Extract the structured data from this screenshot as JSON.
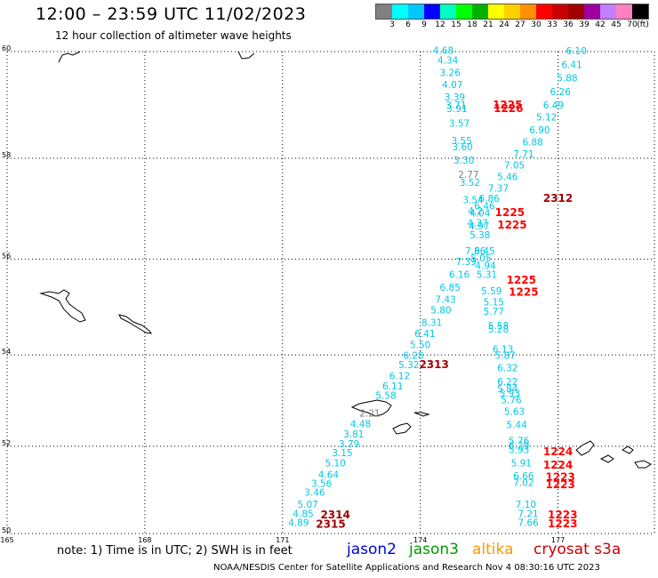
{
  "header": {
    "title": "12:00 – 23:59 UTC 11/02/2023",
    "subtitle": "12 hour collection of altimeter wave heights"
  },
  "legend": {
    "unit": "(ft)",
    "ticks": [
      "3",
      "6",
      "9",
      "12",
      "15",
      "18",
      "21",
      "24",
      "27",
      "30",
      "33",
      "36",
      "39",
      "42",
      "45",
      "70"
    ],
    "colors": [
      "#808080",
      "#00ffff",
      "#00c8ff",
      "#0000ff",
      "#00ffc0",
      "#00ff00",
      "#00b000",
      "#ffff00",
      "#ffd000",
      "#ff9000",
      "#ff0000",
      "#c80000",
      "#a00000",
      "#a000a0",
      "#c080ff",
      "#ff80c0",
      "#000000"
    ]
  },
  "map": {
    "lat_labels": [
      "60",
      "58",
      "56",
      "54",
      "52",
      "50"
    ],
    "lon_labels": [
      "165",
      "168",
      "171",
      "174",
      "177"
    ]
  },
  "track_colors": {
    "cyan": "#00c8e6",
    "gray": "#808080",
    "red": "#ff0000",
    "darkred": "#a00000"
  },
  "observations": [
    {
      "label": "4.68",
      "color": "cyan",
      "lon": 174.5,
      "lat": 59.96
    },
    {
      "label": "4.34",
      "color": "cyan",
      "lon": 174.6,
      "lat": 59.78
    },
    {
      "label": "3.26",
      "color": "cyan",
      "lon": 174.65,
      "lat": 59.55
    },
    {
      "label": "4.07",
      "color": "cyan",
      "lon": 174.7,
      "lat": 59.33
    },
    {
      "label": "3.39",
      "color": "cyan",
      "lon": 174.75,
      "lat": 59.1
    },
    {
      "label": "3.71",
      "color": "cyan",
      "lon": 174.78,
      "lat": 58.95
    },
    {
      "label": "3.91",
      "color": "cyan",
      "lon": 174.8,
      "lat": 58.88
    },
    {
      "label": "3.57",
      "color": "cyan",
      "lon": 174.85,
      "lat": 58.6
    },
    {
      "label": "3.55",
      "color": "cyan",
      "lon": 174.9,
      "lat": 58.27
    },
    {
      "label": "3.60",
      "color": "cyan",
      "lon": 174.92,
      "lat": 58.15
    },
    {
      "label": "3.30",
      "color": "cyan",
      "lon": 174.95,
      "lat": 57.9
    },
    {
      "label": "2.77",
      "color": "gray",
      "lon": 175.05,
      "lat": 57.62
    },
    {
      "label": "3.52",
      "color": "cyan",
      "lon": 175.08,
      "lat": 57.46
    },
    {
      "label": "3.54",
      "color": "cyan",
      "lon": 175.15,
      "lat": 57.12
    },
    {
      "label": "4.2",
      "color": "cyan",
      "lon": 175.2,
      "lat": 56.9
    },
    {
      "label": "4.04",
      "color": "cyan",
      "lon": 175.3,
      "lat": 56.86
    },
    {
      "label": "4.37",
      "color": "cyan",
      "lon": 175.25,
      "lat": 56.66
    },
    {
      "label": "4.97",
      "color": "cyan",
      "lon": 175.28,
      "lat": 56.6
    },
    {
      "label": "5.38",
      "color": "cyan",
      "lon": 175.3,
      "lat": 56.42
    },
    {
      "label": "7.86",
      "color": "cyan",
      "lon": 175.2,
      "lat": 56.1
    },
    {
      "label": "6.45",
      "color": "cyan",
      "lon": 175.4,
      "lat": 56.1
    },
    {
      "label": "5.05",
      "color": "cyan",
      "lon": 175.32,
      "lat": 55.95
    },
    {
      "label": "7.39",
      "color": "cyan",
      "lon": 175.0,
      "lat": 55.88
    },
    {
      "label": "4.94",
      "color": "cyan",
      "lon": 175.42,
      "lat": 55.8
    },
    {
      "label": "6.16",
      "color": "cyan",
      "lon": 174.85,
      "lat": 55.62
    },
    {
      "label": "5.31",
      "color": "cyan",
      "lon": 175.45,
      "lat": 55.62
    },
    {
      "label": "6.85",
      "color": "cyan",
      "lon": 174.65,
      "lat": 55.35
    },
    {
      "label": "5.59",
      "color": "cyan",
      "lon": 175.55,
      "lat": 55.28
    },
    {
      "label": "7.43",
      "color": "cyan",
      "lon": 174.55,
      "lat": 55.1
    },
    {
      "label": "5.15",
      "color": "cyan",
      "lon": 175.6,
      "lat": 55.05
    },
    {
      "label": "5.80",
      "color": "cyan",
      "lon": 174.45,
      "lat": 54.88
    },
    {
      "label": "5.77",
      "color": "cyan",
      "lon": 175.6,
      "lat": 54.85
    },
    {
      "label": "8.31",
      "color": "cyan",
      "lon": 174.25,
      "lat": 54.62
    },
    {
      "label": "5.58",
      "color": "cyan",
      "lon": 175.7,
      "lat": 54.55
    },
    {
      "label": "5.28",
      "color": "cyan",
      "lon": 175.7,
      "lat": 54.48
    },
    {
      "label": "6.41",
      "color": "cyan",
      "lon": 174.1,
      "lat": 54.38
    },
    {
      "label": "5.50",
      "color": "cyan",
      "lon": 174.0,
      "lat": 54.15
    },
    {
      "label": "6.13",
      "color": "cyan",
      "lon": 175.8,
      "lat": 54.05
    },
    {
      "label": "6.28",
      "color": "cyan",
      "lon": 173.85,
      "lat": 53.92
    },
    {
      "label": "5.87",
      "color": "cyan",
      "lon": 175.85,
      "lat": 53.92
    },
    {
      "label": "5.32",
      "color": "cyan",
      "lon": 173.75,
      "lat": 53.72
    },
    {
      "label": "6.32",
      "color": "cyan",
      "lon": 175.9,
      "lat": 53.65
    },
    {
      "label": "6.12",
      "color": "cyan",
      "lon": 173.55,
      "lat": 53.48
    },
    {
      "label": "6.22",
      "color": "cyan",
      "lon": 175.9,
      "lat": 53.35
    },
    {
      "label": "6.11",
      "color": "cyan",
      "lon": 173.4,
      "lat": 53.25
    },
    {
      "label": "5.84",
      "color": "cyan",
      "lon": 175.9,
      "lat": 53.2
    },
    {
      "label": "5.58",
      "color": "cyan",
      "lon": 173.25,
      "lat": 53.05
    },
    {
      "label": "5.93",
      "color": "cyan",
      "lon": 175.95,
      "lat": 53.1
    },
    {
      "label": "5.76",
      "color": "cyan",
      "lon": 175.98,
      "lat": 52.95
    },
    {
      "label": "5.63",
      "color": "cyan",
      "lon": 176.05,
      "lat": 52.7
    },
    {
      "label": "2.21",
      "color": "gray",
      "lon": 172.9,
      "lat": 52.66
    },
    {
      "label": "4.48",
      "color": "cyan",
      "lon": 172.7,
      "lat": 52.42
    },
    {
      "label": "5.44",
      "color": "cyan",
      "lon": 176.1,
      "lat": 52.4
    },
    {
      "label": "3.81",
      "color": "cyan",
      "lon": 172.55,
      "lat": 52.2
    },
    {
      "label": "5.76",
      "color": "cyan",
      "lon": 176.15,
      "lat": 52.05
    },
    {
      "label": "3.79",
      "color": "cyan",
      "lon": 172.45,
      "lat": 51.98
    },
    {
      "label": "6.29",
      "color": "cyan",
      "lon": 176.15,
      "lat": 51.95
    },
    {
      "label": "5.93",
      "color": "cyan",
      "lon": 176.15,
      "lat": 51.85
    },
    {
      "label": "3.15",
      "color": "cyan",
      "lon": 172.3,
      "lat": 51.78
    },
    {
      "label": "5.10",
      "color": "cyan",
      "lon": 172.15,
      "lat": 51.55
    },
    {
      "label": "5.91",
      "color": "cyan",
      "lon": 176.2,
      "lat": 51.55
    },
    {
      "label": "4.64",
      "color": "cyan",
      "lon": 172.0,
      "lat": 51.28
    },
    {
      "label": "6.66",
      "color": "cyan",
      "lon": 176.25,
      "lat": 51.25
    },
    {
      "label": "3.56",
      "color": "cyan",
      "lon": 171.85,
      "lat": 51.08
    },
    {
      "label": "7.02",
      "color": "cyan",
      "lon": 176.25,
      "lat": 51.1
    },
    {
      "label": "3.46",
      "color": "cyan",
      "lon": 171.7,
      "lat": 50.88
    },
    {
      "label": "5.07",
      "color": "cyan",
      "lon": 171.55,
      "lat": 50.6
    },
    {
      "label": "7.10",
      "color": "cyan",
      "lon": 176.3,
      "lat": 50.6
    },
    {
      "label": "4.85",
      "color": "cyan",
      "lon": 171.45,
      "lat": 50.38
    },
    {
      "label": "7.21",
      "color": "cyan",
      "lon": 176.35,
      "lat": 50.38
    },
    {
      "label": "4.89",
      "color": "cyan",
      "lon": 171.35,
      "lat": 50.18
    },
    {
      "label": "7.66",
      "color": "cyan",
      "lon": 176.35,
      "lat": 50.18
    },
    {
      "label": "6.10",
      "color": "cyan",
      "lon": 177.4,
      "lat": 59.95
    },
    {
      "label": "6.41",
      "color": "cyan",
      "lon": 177.3,
      "lat": 59.7
    },
    {
      "label": "5.88",
      "color": "cyan",
      "lon": 177.2,
      "lat": 59.45
    },
    {
      "label": "6.26",
      "color": "cyan",
      "lon": 177.05,
      "lat": 59.2
    },
    {
      "label": "6.49",
      "color": "cyan",
      "lon": 176.9,
      "lat": 58.95
    },
    {
      "label": "5.12",
      "color": "cyan",
      "lon": 176.75,
      "lat": 58.72
    },
    {
      "label": "6.90",
      "color": "cyan",
      "lon": 176.6,
      "lat": 58.48
    },
    {
      "label": "6.88",
      "color": "cyan",
      "lon": 176.45,
      "lat": 58.25
    },
    {
      "label": "7.71",
      "color": "cyan",
      "lon": 176.25,
      "lat": 58.02
    },
    {
      "label": "7.05",
      "color": "cyan",
      "lon": 176.05,
      "lat": 57.8
    },
    {
      "label": "5.46",
      "color": "cyan",
      "lon": 175.9,
      "lat": 57.58
    },
    {
      "label": "7.37",
      "color": "cyan",
      "lon": 175.7,
      "lat": 57.35
    },
    {
      "label": "6.86",
      "color": "cyan",
      "lon": 175.5,
      "lat": 57.15
    },
    {
      "label": "6.46",
      "color": "cyan",
      "lon": 175.4,
      "lat": 57.0
    },
    {
      "label": "1225",
      "color": "red",
      "lon": 175.9,
      "lat": 58.95
    },
    {
      "label": "1226",
      "color": "red",
      "lon": 175.92,
      "lat": 58.88
    },
    {
      "label": "2312",
      "color": "darkred",
      "lon": 177.0,
      "lat": 57.15
    },
    {
      "label": "1225",
      "color": "red",
      "lon": 175.95,
      "lat": 56.87
    },
    {
      "label": "1225",
      "color": "red",
      "lon": 176.0,
      "lat": 56.62
    },
    {
      "label": "1225",
      "color": "red",
      "lon": 176.2,
      "lat": 55.5
    },
    {
      "label": "1225",
      "color": "red",
      "lon": 176.25,
      "lat": 55.25
    },
    {
      "label": "2313",
      "color": "darkred",
      "lon": 174.3,
      "lat": 53.72
    },
    {
      "label": "1224",
      "color": "red",
      "lon": 177.0,
      "lat": 51.8
    },
    {
      "label": "1224",
      "color": "red",
      "lon": 177.0,
      "lat": 51.5
    },
    {
      "label": "1223",
      "color": "red",
      "lon": 177.05,
      "lat": 51.22
    },
    {
      "label": "1223",
      "color": "red",
      "lon": 177.05,
      "lat": 51.05
    },
    {
      "label": "1223",
      "color": "red",
      "lon": 177.1,
      "lat": 50.35
    },
    {
      "label": "1223",
      "color": "red",
      "lon": 177.1,
      "lat": 50.15
    },
    {
      "label": "2314",
      "color": "darkred",
      "lon": 172.15,
      "lat": 50.35
    },
    {
      "label": "2315",
      "color": "darkred",
      "lon": 172.05,
      "lat": 50.13
    }
  ],
  "footer": {
    "note": "note: 1) Time is in UTC; 2) SWH is in feet",
    "satellites": [
      {
        "name": "jason2",
        "color": "#0000dd"
      },
      {
        "name": "jason3",
        "color": "#009900"
      },
      {
        "name": "altika",
        "color": "#ff9900"
      },
      {
        "name": "cryosat s3a",
        "color": "#cc0000"
      }
    ],
    "credit": "NOAA/NESDIS Center for Satellite Applications and Research   Nov  4 08:30:16 UTC 2023"
  }
}
